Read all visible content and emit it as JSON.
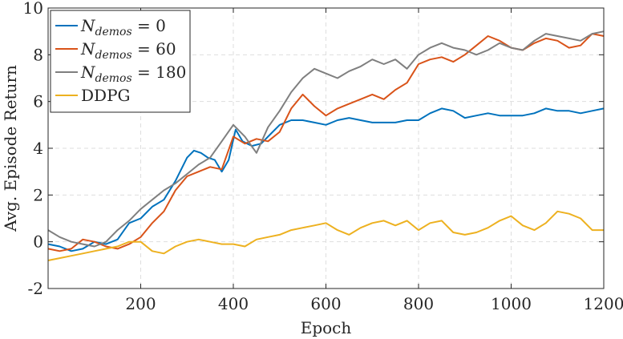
{
  "chart_data": {
    "type": "line",
    "xlabel": "Epoch",
    "ylabel": "Avg. Episode Return",
    "xlim": [
      0,
      1200
    ],
    "ylim": [
      -2,
      10
    ],
    "xticks": [
      200,
      400,
      600,
      800,
      1000,
      1200
    ],
    "xtick_labels": [
      "200",
      "400",
      "600",
      "800",
      "1000",
      "1200"
    ],
    "yticks": [
      -2,
      0,
      2,
      4,
      6,
      8,
      10
    ],
    "ytick_labels": [
      "-2",
      "0",
      "2",
      "4",
      "6",
      "8",
      "10"
    ],
    "grid": true,
    "legend_position": "top-left",
    "series": [
      {
        "name": "N_demos = 0",
        "legend": {
          "main": "N",
          "sub": "demos",
          "rest": " = 0"
        },
        "color": "#0072BD",
        "x": [
          0,
          25,
          50,
          75,
          100,
          125,
          150,
          175,
          200,
          225,
          250,
          275,
          300,
          315,
          330,
          345,
          360,
          375,
          390,
          405,
          420,
          440,
          460,
          480,
          500,
          525,
          550,
          575,
          600,
          625,
          650,
          675,
          700,
          725,
          750,
          775,
          800,
          825,
          850,
          875,
          900,
          925,
          950,
          975,
          1000,
          1025,
          1050,
          1075,
          1100,
          1125,
          1150,
          1175,
          1200
        ],
        "y": [
          -0.1,
          -0.2,
          -0.4,
          -0.3,
          0.0,
          -0.1,
          0.1,
          0.8,
          1.0,
          1.5,
          1.8,
          2.6,
          3.6,
          3.9,
          3.8,
          3.6,
          3.5,
          3.0,
          3.5,
          4.8,
          4.3,
          4.1,
          4.2,
          4.6,
          5.0,
          5.2,
          5.2,
          5.1,
          5.0,
          5.2,
          5.3,
          5.2,
          5.1,
          5.1,
          5.1,
          5.2,
          5.2,
          5.5,
          5.7,
          5.6,
          5.3,
          5.4,
          5.5,
          5.4,
          5.4,
          5.4,
          5.5,
          5.7,
          5.6,
          5.6,
          5.5,
          5.6,
          5.7
        ]
      },
      {
        "name": "N_demos = 60",
        "legend": {
          "main": "N",
          "sub": "demos",
          "rest": " = 60"
        },
        "color": "#D95319",
        "x": [
          0,
          25,
          50,
          75,
          100,
          125,
          150,
          175,
          200,
          225,
          250,
          275,
          300,
          325,
          350,
          375,
          400,
          425,
          450,
          475,
          500,
          525,
          550,
          575,
          600,
          625,
          650,
          675,
          700,
          725,
          750,
          775,
          800,
          825,
          850,
          875,
          900,
          925,
          950,
          975,
          1000,
          1025,
          1050,
          1075,
          1100,
          1125,
          1150,
          1175,
          1200
        ],
        "y": [
          -0.3,
          -0.4,
          -0.3,
          0.1,
          0.0,
          -0.2,
          -0.3,
          -0.1,
          0.2,
          0.8,
          1.3,
          2.2,
          2.8,
          3.0,
          3.2,
          3.1,
          4.5,
          4.2,
          4.4,
          4.3,
          4.7,
          5.7,
          6.3,
          5.8,
          5.4,
          5.7,
          5.9,
          6.1,
          6.3,
          6.1,
          6.5,
          6.8,
          7.6,
          7.8,
          7.9,
          7.7,
          8.0,
          8.4,
          8.8,
          8.6,
          8.3,
          8.2,
          8.5,
          8.7,
          8.6,
          8.3,
          8.4,
          8.9,
          8.8
        ]
      },
      {
        "name": "N_demos = 180",
        "legend": {
          "main": "N",
          "sub": "demos",
          "rest": " = 180"
        },
        "color": "#7F7F7F",
        "x": [
          0,
          25,
          50,
          75,
          100,
          125,
          150,
          175,
          200,
          225,
          250,
          275,
          300,
          325,
          350,
          375,
          400,
          425,
          450,
          475,
          500,
          525,
          550,
          575,
          600,
          625,
          650,
          675,
          700,
          725,
          750,
          775,
          800,
          825,
          850,
          875,
          900,
          925,
          950,
          975,
          1000,
          1025,
          1050,
          1075,
          1100,
          1125,
          1150,
          1175,
          1200
        ],
        "y": [
          0.5,
          0.2,
          0.0,
          -0.1,
          -0.2,
          0.0,
          0.5,
          0.9,
          1.4,
          1.8,
          2.2,
          2.5,
          2.9,
          3.3,
          3.6,
          4.3,
          5.0,
          4.5,
          3.8,
          4.9,
          5.6,
          6.4,
          7.0,
          7.4,
          7.2,
          7.0,
          7.3,
          7.5,
          7.8,
          7.6,
          7.8,
          7.4,
          8.0,
          8.3,
          8.5,
          8.3,
          8.2,
          8.0,
          8.2,
          8.5,
          8.3,
          8.2,
          8.6,
          8.9,
          8.8,
          8.7,
          8.6,
          8.9,
          9.0
        ]
      },
      {
        "name": "DDPG",
        "legend": {
          "main": "DDPG",
          "sub": "",
          "rest": ""
        },
        "color": "#EDB120",
        "x": [
          0,
          25,
          50,
          75,
          100,
          125,
          150,
          175,
          200,
          225,
          250,
          275,
          300,
          325,
          350,
          375,
          400,
          425,
          450,
          475,
          500,
          525,
          550,
          575,
          600,
          625,
          650,
          675,
          700,
          725,
          750,
          775,
          800,
          825,
          850,
          875,
          900,
          925,
          950,
          975,
          1000,
          1025,
          1050,
          1075,
          1100,
          1125,
          1150,
          1175,
          1200
        ],
        "y": [
          -0.8,
          -0.7,
          -0.6,
          -0.5,
          -0.4,
          -0.3,
          -0.2,
          0.0,
          0.0,
          -0.4,
          -0.5,
          -0.2,
          0.0,
          0.1,
          0.0,
          -0.1,
          -0.1,
          -0.2,
          0.1,
          0.2,
          0.3,
          0.5,
          0.6,
          0.7,
          0.8,
          0.5,
          0.3,
          0.6,
          0.8,
          0.9,
          0.7,
          0.9,
          0.5,
          0.8,
          0.9,
          0.4,
          0.3,
          0.4,
          0.6,
          0.9,
          1.1,
          0.7,
          0.5,
          0.8,
          1.3,
          1.2,
          1.0,
          0.5,
          0.5
        ]
      }
    ]
  }
}
